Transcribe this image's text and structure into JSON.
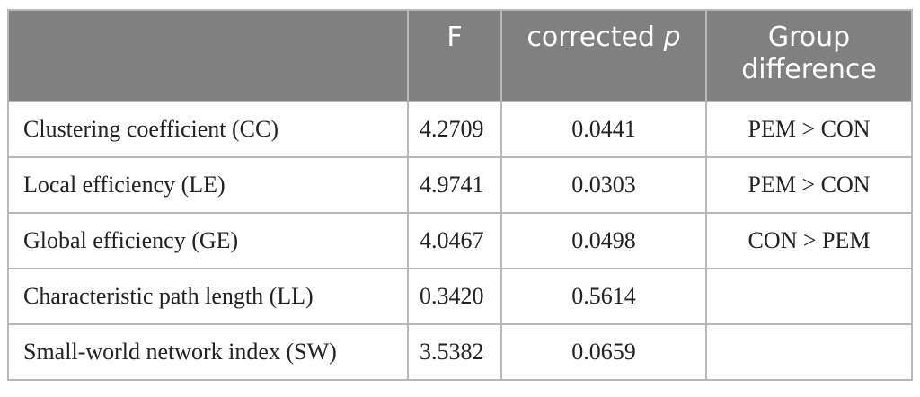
{
  "table": {
    "headers": {
      "col1": "",
      "col2": "F",
      "col3_prefix": "corrected ",
      "col3_italic": "p",
      "col4_line1": "Group",
      "col4_line2": "difference"
    },
    "rows": [
      {
        "measure": "Clustering coefficient (CC)",
        "f": "4.2709",
        "p": "0.0441",
        "diff": "PEM > CON"
      },
      {
        "measure": "Local efficiency (LE)",
        "f": "4.9741",
        "p": "0.0303",
        "diff": "PEM > CON"
      },
      {
        "measure": "Global efficiency (GE)",
        "f": "4.0467",
        "p": "0.0498",
        "diff": "CON > PEM"
      },
      {
        "measure": "Characteristic path length (LL)",
        "f": "0.3420",
        "p": "0.5614",
        "diff": ""
      },
      {
        "measure": "Small-world network index (SW)",
        "f": "3.5382",
        "p": "0.0659",
        "diff": ""
      }
    ]
  },
  "colors": {
    "header_bg": "#808080",
    "header_text": "#ffffff",
    "border": "#b8b8b8",
    "body_text": "#222222"
  }
}
